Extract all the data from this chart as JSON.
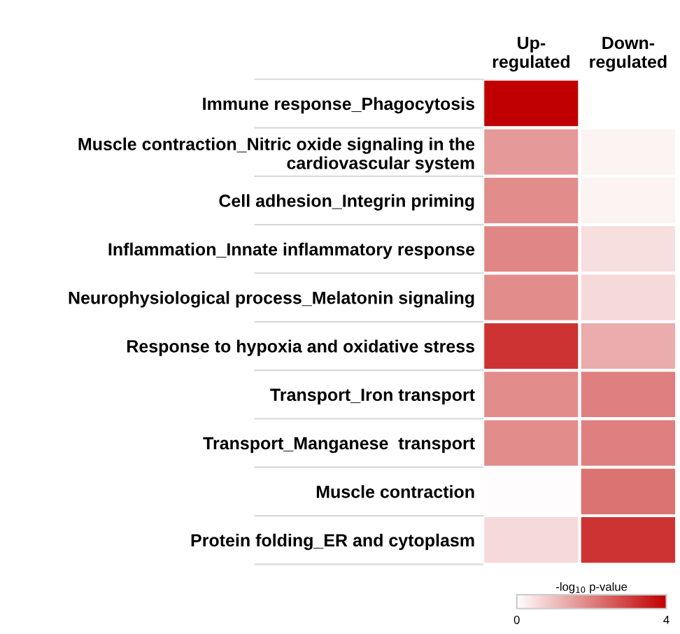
{
  "chart_data": {
    "type": "heatmap",
    "categories": [
      "Up-\nregulated",
      "Down-\nregulated"
    ],
    "y_categories": [
      "Immune response_Phagocytosis",
      "Muscle contraction_Nitric oxide signaling in the\ncardiovascular system",
      "Cell adhesion_Integrin priming",
      "Inflammation_Innate inflammatory response",
      "Neurophysiological process_Melatonin signaling",
      "Response to hypoxia and oxidative stress",
      "Transport_Iron transport",
      "Transport_Manganese  transport",
      "Muscle contraction",
      "Protein folding_ER and cytoplasm"
    ],
    "cells": [
      [
        4.0,
        0.0
      ],
      [
        1.6,
        0.2
      ],
      [
        1.8,
        0.2
      ],
      [
        1.9,
        0.5
      ],
      [
        1.8,
        0.6
      ],
      [
        3.2,
        1.3
      ],
      [
        1.8,
        2.0
      ],
      [
        1.8,
        2.0
      ],
      [
        0.05,
        2.2
      ],
      [
        0.6,
        3.2
      ]
    ],
    "clim": [
      0,
      4
    ],
    "cticks": [
      0,
      4
    ],
    "clabel": "-log$_{10}$ p-value",
    "colors": [
      "#ffffff",
      "#c00000"
    ]
  }
}
